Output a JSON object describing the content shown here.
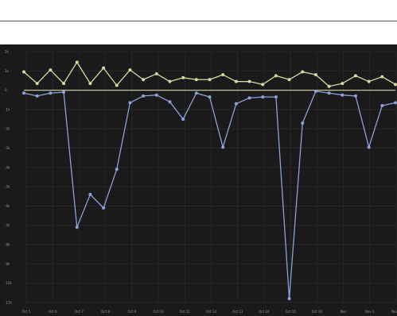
{
  "colors": {
    "background": "#1a1a1a",
    "grid": "#2a2a2a",
    "zero_line": "#c8c39a",
    "series_upper": "#d8d8a0",
    "series_lower": "#8ea0d8",
    "text": "#9a9a9a"
  },
  "chart_data": {
    "type": "line",
    "title": "",
    "xlabel": "",
    "ylabel": "",
    "grid": true,
    "legend": "none",
    "ylim": [
      -11,
      2
    ],
    "y_ticks": [
      2,
      1,
      0,
      -1,
      -2,
      -3,
      -4,
      -5,
      -6,
      -7,
      -8,
      -9,
      -10,
      -11
    ],
    "y_tick_labels": [
      "2k",
      "1k",
      "0",
      "-1k",
      "-2k",
      "-3k",
      "-4k",
      "-5k",
      "-6k",
      "-7k",
      "-8k",
      "-9k",
      "-10k",
      "-11k"
    ],
    "x_tick_labels": [
      "Oct 5",
      "Oct 6",
      "Oct 7",
      "Oct 8",
      "Oct 9",
      "Oct 10",
      "Oct 11",
      "Oct 12",
      "Oct 13",
      "Oct 14",
      "Oct 15",
      "Oct 16",
      "Nov",
      "Nov 2",
      "Nov 3"
    ],
    "x": [
      0,
      1,
      2,
      3,
      4,
      5,
      6,
      7,
      8,
      9,
      10,
      11,
      12,
      13,
      14,
      15,
      16,
      17,
      18,
      19,
      20,
      21,
      22,
      23,
      24,
      25,
      26,
      27,
      28
    ],
    "series": [
      {
        "name": "",
        "values": [
          0.95,
          0.35,
          1.05,
          0.35,
          1.45,
          0.35,
          1.15,
          0.25,
          1.05,
          0.55,
          0.85,
          0.45,
          0.65,
          0.55,
          0.55,
          0.8,
          0.45,
          0.45,
          0.3,
          0.75,
          0.55,
          0.95,
          0.8,
          0.2,
          0.35,
          0.75,
          0.45,
          0.7,
          0.3
        ]
      },
      {
        "name": "",
        "values": [
          -0.15,
          -0.3,
          -0.15,
          -0.1,
          -7.1,
          -5.4,
          -6.1,
          -4.1,
          -0.65,
          -0.3,
          -0.25,
          -0.6,
          -1.5,
          -0.15,
          -0.35,
          -2.95,
          -0.7,
          -0.4,
          -0.35,
          -0.35,
          -10.8,
          -1.7,
          -0.05,
          -0.15,
          -0.25,
          -0.3,
          -2.95,
          -0.8,
          -0.65
        ]
      }
    ]
  }
}
